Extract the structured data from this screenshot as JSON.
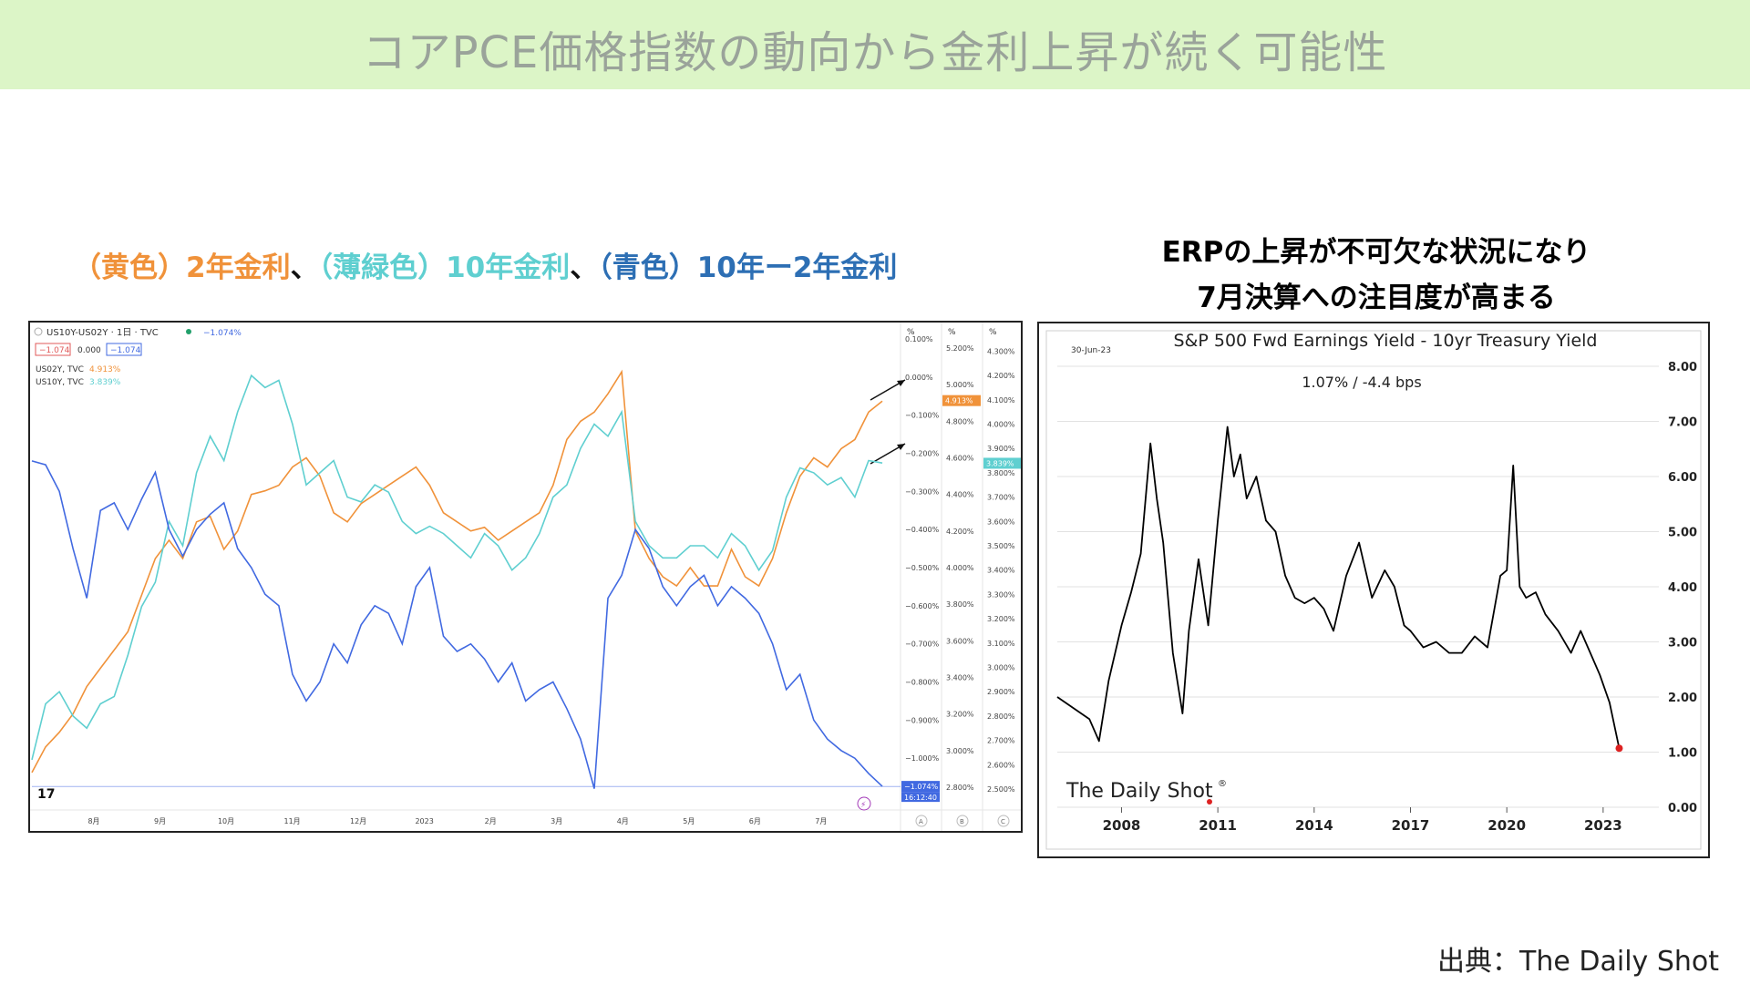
{
  "title": "コアPCE価格指数の動向から金利上昇が続く可能性",
  "left_heading": {
    "parts": [
      {
        "text": "（黄色）2年金利",
        "color": "#f0923a"
      },
      {
        "text": "、",
        "color": "#111111"
      },
      {
        "text": "（薄緑色）10年金利",
        "color": "#5fcfd0"
      },
      {
        "text": "、",
        "color": "#111111"
      },
      {
        "text": "（青色）10年ー2年金利",
        "color": "#2d6fb4"
      }
    ]
  },
  "right_heading": {
    "line1": "ERPの上昇が不可欠な状況になり",
    "line2": "7月決算への注目度が高まる"
  },
  "source": "出典：The Daily Shot",
  "colors": {
    "orange": "#f0923a",
    "teal": "#5fcfd0",
    "blue": "#4169e1",
    "band": "#dcf5c7"
  },
  "chart_data": [
    {
      "type": "line",
      "header": {
        "symbol": "US10Y-US02Y · 1日 · TVC",
        "symbol_value": "−1.074%",
        "badge1": "−1.074",
        "badge2": "0.000",
        "badge3": "−1.074",
        "row2_label": "US02Y, TVC",
        "row2_value": "4.913%",
        "row3_label": "US10Y, TVC",
        "row3_value": "3.839%",
        "col_units": [
          "%",
          "%",
          "%"
        ],
        "col_letters": [
          "A",
          "B",
          "C"
        ]
      },
      "x_ticks": [
        "8月",
        "9月",
        "10月",
        "11月",
        "12月",
        "2023",
        "2月",
        "3月",
        "4月",
        "5月",
        "6月",
        "7月"
      ],
      "axis_a": {
        "ticks": [
          "0.100%",
          "0.000%",
          "−0.100%",
          "−0.200%",
          "−0.300%",
          "−0.400%",
          "−0.500%",
          "−0.600%",
          "−0.700%",
          "−0.800%",
          "−0.900%",
          "−1.000%"
        ],
        "last": "−1.074%",
        "timer": "16:12:40",
        "ylim": [
          -1.1,
          0.1
        ]
      },
      "axis_b": {
        "ticks": [
          "5.200%",
          "5.000%",
          "4.800%",
          "4.600%",
          "4.400%",
          "4.200%",
          "4.000%",
          "3.800%",
          "3.600%",
          "3.400%",
          "3.200%",
          "3.000%",
          "2.800%"
        ],
        "last": "4.913%",
        "ylim": [
          2.75,
          5.25
        ]
      },
      "axis_c": {
        "ticks": [
          "4.300%",
          "4.200%",
          "4.100%",
          "4.000%",
          "3.900%",
          "3.800%",
          "3.700%",
          "3.600%",
          "3.500%",
          "3.400%",
          "3.300%",
          "3.200%",
          "3.100%",
          "3.000%",
          "2.900%",
          "2.800%",
          "2.700%",
          "2.600%",
          "2.500%"
        ],
        "last": "3.839%",
        "ylim": [
          2.47,
          4.35
        ]
      },
      "series": [
        {
          "name": "US02Y, TVC",
          "color": "#f0923a",
          "axis": "b",
          "values": [
            2.88,
            3.02,
            3.1,
            3.2,
            3.35,
            3.45,
            3.55,
            3.65,
            3.85,
            4.05,
            4.15,
            4.05,
            4.25,
            4.28,
            4.1,
            4.2,
            4.4,
            4.42,
            4.45,
            4.55,
            4.6,
            4.5,
            4.3,
            4.25,
            4.35,
            4.4,
            4.45,
            4.5,
            4.55,
            4.45,
            4.3,
            4.25,
            4.2,
            4.22,
            4.15,
            4.2,
            4.25,
            4.3,
            4.45,
            4.7,
            4.8,
            4.85,
            4.95,
            5.07,
            4.2,
            4.05,
            3.95,
            3.9,
            4.0,
            3.9,
            3.9,
            4.1,
            3.95,
            3.9,
            4.05,
            4.3,
            4.5,
            4.6,
            4.55,
            4.65,
            4.7,
            4.85,
            4.91
          ]
        },
        {
          "name": "US10Y, TVC",
          "color": "#5fcfd0",
          "axis": "c",
          "values": [
            2.62,
            2.85,
            2.9,
            2.8,
            2.75,
            2.85,
            2.88,
            3.05,
            3.25,
            3.35,
            3.6,
            3.5,
            3.8,
            3.95,
            3.85,
            4.05,
            4.2,
            4.15,
            4.18,
            4.0,
            3.75,
            3.8,
            3.85,
            3.7,
            3.68,
            3.75,
            3.72,
            3.6,
            3.55,
            3.58,
            3.55,
            3.5,
            3.45,
            3.55,
            3.5,
            3.4,
            3.45,
            3.55,
            3.7,
            3.75,
            3.9,
            4.0,
            3.95,
            4.05,
            3.6,
            3.5,
            3.45,
            3.45,
            3.5,
            3.5,
            3.45,
            3.55,
            3.5,
            3.4,
            3.48,
            3.7,
            3.82,
            3.8,
            3.75,
            3.78,
            3.7,
            3.85,
            3.84
          ]
        },
        {
          "name": "US10Y-US02Y",
          "color": "#4169e1",
          "axis": "a",
          "values": [
            -0.22,
            -0.23,
            -0.3,
            -0.45,
            -0.58,
            -0.35,
            -0.33,
            -0.4,
            -0.32,
            -0.25,
            -0.4,
            -0.47,
            -0.4,
            -0.36,
            -0.33,
            -0.45,
            -0.5,
            -0.57,
            -0.6,
            -0.78,
            -0.85,
            -0.8,
            -0.7,
            -0.75,
            -0.65,
            -0.6,
            -0.62,
            -0.7,
            -0.55,
            -0.5,
            -0.68,
            -0.72,
            -0.7,
            -0.74,
            -0.8,
            -0.75,
            -0.85,
            -0.82,
            -0.8,
            -0.87,
            -0.95,
            -1.08,
            -0.58,
            -0.52,
            -0.4,
            -0.45,
            -0.55,
            -0.6,
            -0.55,
            -0.52,
            -0.6,
            -0.55,
            -0.58,
            -0.62,
            -0.7,
            -0.82,
            -0.78,
            -0.9,
            -0.95,
            -0.98,
            -1.0,
            -1.04,
            -1.074
          ]
        }
      ]
    },
    {
      "type": "line",
      "title": "S&P 500 Fwd Earnings Yield - 10yr Treasury Yield",
      "date_label": "30-Jun-23",
      "annotation": "1.07%  /  -4.4 bps",
      "watermark": "The Daily Shot",
      "x_ticks": [
        "2008",
        "2011",
        "2014",
        "2017",
        "2020",
        "2023"
      ],
      "y_ticks": [
        "8.00",
        "7.00",
        "6.00",
        "5.00",
        "4.00",
        "3.00",
        "2.00",
        "1.00",
        "0.00"
      ],
      "ylim": [
        0,
        8
      ],
      "xlim": [
        2006.0,
        2023.6
      ],
      "series": [
        {
          "name": "",
          "color": "#000000",
          "x": [
            2006.0,
            2006.5,
            2007.0,
            2007.3,
            2007.6,
            2008.0,
            2008.3,
            2008.6,
            2008.9,
            2009.1,
            2009.3,
            2009.6,
            2009.9,
            2010.1,
            2010.4,
            2010.7,
            2011.0,
            2011.3,
            2011.5,
            2011.7,
            2011.9,
            2012.2,
            2012.5,
            2012.8,
            2013.1,
            2013.4,
            2013.7,
            2014.0,
            2014.3,
            2014.6,
            2015.0,
            2015.4,
            2015.8,
            2016.2,
            2016.5,
            2016.8,
            2017.0,
            2017.4,
            2017.8,
            2018.2,
            2018.6,
            2019.0,
            2019.4,
            2019.8,
            2020.0,
            2020.2,
            2020.4,
            2020.6,
            2020.9,
            2021.2,
            2021.6,
            2022.0,
            2022.3,
            2022.6,
            2022.9,
            2023.2,
            2023.5
          ],
          "y": [
            2.0,
            1.8,
            1.6,
            1.2,
            2.3,
            3.3,
            3.9,
            4.6,
            6.6,
            5.6,
            4.8,
            2.8,
            1.7,
            3.2,
            4.5,
            3.3,
            5.2,
            6.9,
            6.0,
            6.4,
            5.6,
            6.0,
            5.2,
            5.0,
            4.2,
            3.8,
            3.7,
            3.8,
            3.6,
            3.2,
            4.2,
            4.8,
            3.8,
            4.3,
            4.0,
            3.3,
            3.2,
            2.9,
            3.0,
            2.8,
            2.8,
            3.1,
            2.9,
            4.2,
            4.3,
            6.2,
            4.0,
            3.8,
            3.9,
            3.5,
            3.2,
            2.8,
            3.2,
            2.8,
            2.4,
            1.9,
            1.07
          ]
        }
      ]
    }
  ]
}
